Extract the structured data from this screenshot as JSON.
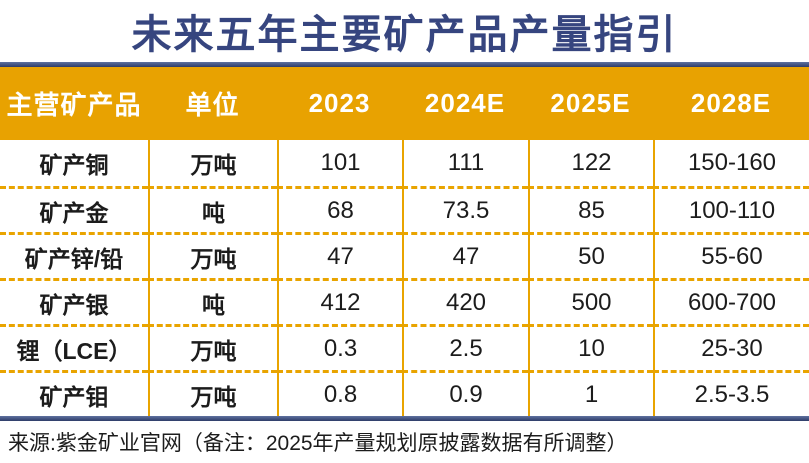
{
  "title": "未来五年主要矿产品产量指引",
  "colors": {
    "header_gold": "#E8A201",
    "grid_gold": "#E9A400",
    "title_navy": "#36457F",
    "rule_navy": "#2E3C68",
    "body_text": "#1C1C1C"
  },
  "table": {
    "columns": [
      "主营矿产品",
      "单位",
      "2023",
      "2024E",
      "2025E",
      "2028E"
    ],
    "rows": [
      [
        "矿产铜",
        "万吨",
        "101",
        "111",
        "122",
        "150-160"
      ],
      [
        "矿产金",
        "吨",
        "68",
        "73.5",
        "85",
        "100-110"
      ],
      [
        "矿产锌/铅",
        "万吨",
        "47",
        "47",
        "50",
        "55-60"
      ],
      [
        "矿产银",
        "吨",
        "412",
        "420",
        "500",
        "600-700"
      ],
      [
        "锂（LCE）",
        "万吨",
        "0.3",
        "2.5",
        "10",
        "25-30"
      ],
      [
        "矿产钼",
        "万吨",
        "0.8",
        "0.9",
        "1",
        "2.5-3.5"
      ]
    ]
  },
  "footer": {
    "source_note": "来源:紫金矿业官网（备注：2025年产量规划原披露数据有所调整）"
  },
  "chart_data": {
    "type": "table",
    "title": "未来五年主要矿产品产量指引",
    "columns": [
      "主营矿产品",
      "单位",
      "2023",
      "2024E",
      "2025E",
      "2028E"
    ],
    "rows": [
      [
        "矿产铜",
        "万吨",
        "101",
        "111",
        "122",
        "150-160"
      ],
      [
        "矿产金",
        "吨",
        "68",
        "73.5",
        "85",
        "100-110"
      ],
      [
        "矿产锌/铅",
        "万吨",
        "47",
        "47",
        "50",
        "55-60"
      ],
      [
        "矿产银",
        "吨",
        "412",
        "420",
        "500",
        "600-700"
      ],
      [
        "锂（LCE）",
        "万吨",
        "0.3",
        "2.5",
        "10",
        "25-30"
      ],
      [
        "矿产钼",
        "万吨",
        "0.8",
        "0.9",
        "1",
        "2.5-3.5"
      ]
    ],
    "source": "来源:紫金矿业官网（备注：2025年产量规划原披露数据有所调整）"
  }
}
